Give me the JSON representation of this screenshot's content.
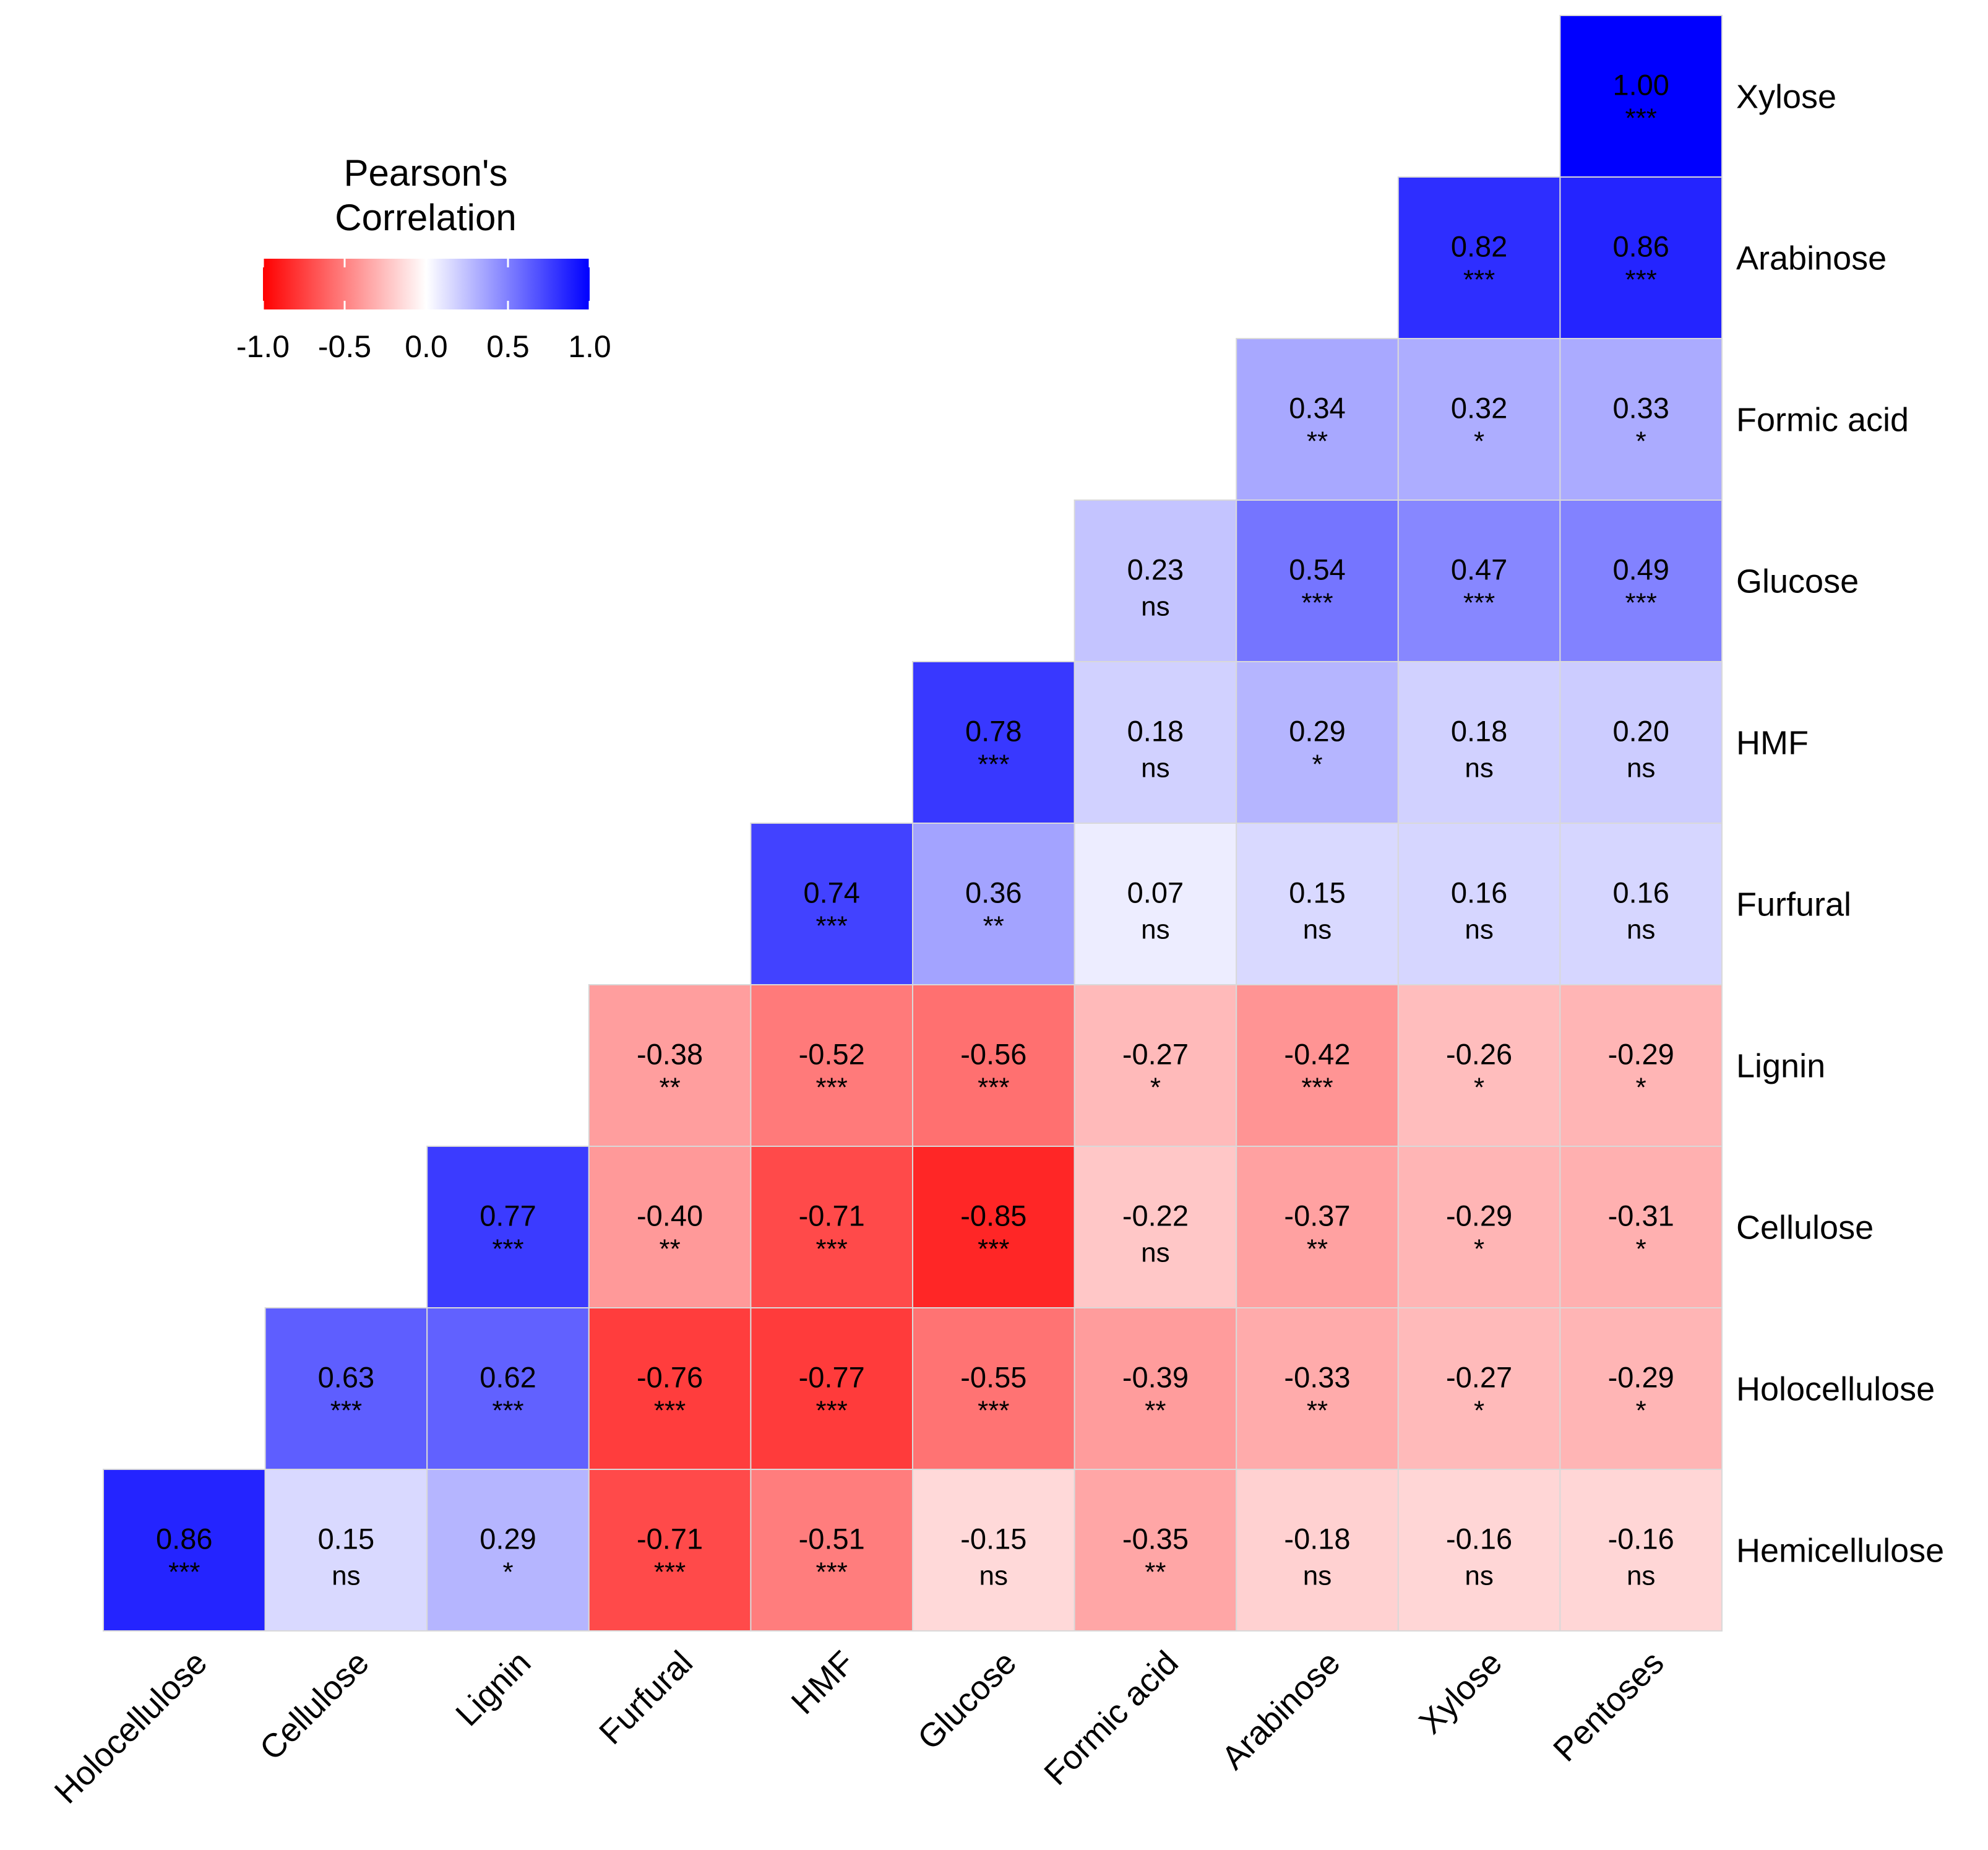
{
  "chart_data": {
    "type": "heatmap",
    "subtype": "lower-triangle correlation matrix",
    "legend": {
      "title": [
        "Pearson's",
        "Correlation"
      ],
      "ticks": [
        -1.0,
        -0.5,
        0.0,
        0.5,
        1.0
      ],
      "tick_labels": [
        "-1.0",
        "-0.5",
        "0.0",
        "0.5",
        "1.0"
      ],
      "range": [
        -1,
        1
      ],
      "low_color": "#ff0000",
      "mid_color": "#ffffff",
      "high_color": "#0000ff",
      "placement": "top-left"
    },
    "columns": [
      "Holocellulose",
      "Cellulose",
      "Lignin",
      "Furfural",
      "HMF",
      "Glucose",
      "Formic acid",
      "Arabinose",
      "Xylose",
      "Pentoses"
    ],
    "rows": [
      "Xylose",
      "Arabinose",
      "Formic acid",
      "Glucose",
      "HMF",
      "Furfural",
      "Lignin",
      "Cellulose",
      "Holocellulose",
      "Hemicellulose"
    ],
    "cells": [
      {
        "row": "Xylose",
        "col": "Pentoses",
        "value": 1.0,
        "label": "1.00",
        "sig": "***"
      },
      {
        "row": "Arabinose",
        "col": "Xylose",
        "value": 0.82,
        "label": "0.82",
        "sig": "***"
      },
      {
        "row": "Arabinose",
        "col": "Pentoses",
        "value": 0.86,
        "label": "0.86",
        "sig": "***"
      },
      {
        "row": "Formic acid",
        "col": "Arabinose",
        "value": 0.34,
        "label": "0.34",
        "sig": "**"
      },
      {
        "row": "Formic acid",
        "col": "Xylose",
        "value": 0.32,
        "label": "0.32",
        "sig": "*"
      },
      {
        "row": "Formic acid",
        "col": "Pentoses",
        "value": 0.33,
        "label": "0.33",
        "sig": "*"
      },
      {
        "row": "Glucose",
        "col": "Formic acid",
        "value": 0.23,
        "label": "0.23",
        "sig": "ns"
      },
      {
        "row": "Glucose",
        "col": "Arabinose",
        "value": 0.54,
        "label": "0.54",
        "sig": "***"
      },
      {
        "row": "Glucose",
        "col": "Xylose",
        "value": 0.47,
        "label": "0.47",
        "sig": "***"
      },
      {
        "row": "Glucose",
        "col": "Pentoses",
        "value": 0.49,
        "label": "0.49",
        "sig": "***"
      },
      {
        "row": "HMF",
        "col": "Glucose",
        "value": 0.78,
        "label": "0.78",
        "sig": "***"
      },
      {
        "row": "HMF",
        "col": "Formic acid",
        "value": 0.18,
        "label": "0.18",
        "sig": "ns"
      },
      {
        "row": "HMF",
        "col": "Arabinose",
        "value": 0.29,
        "label": "0.29",
        "sig": "*"
      },
      {
        "row": "HMF",
        "col": "Xylose",
        "value": 0.18,
        "label": "0.18",
        "sig": "ns"
      },
      {
        "row": "HMF",
        "col": "Pentoses",
        "value": 0.2,
        "label": "0.20",
        "sig": "ns"
      },
      {
        "row": "Furfural",
        "col": "HMF",
        "value": 0.74,
        "label": "0.74",
        "sig": "***"
      },
      {
        "row": "Furfural",
        "col": "Glucose",
        "value": 0.36,
        "label": "0.36",
        "sig": "**"
      },
      {
        "row": "Furfural",
        "col": "Formic acid",
        "value": 0.07,
        "label": "0.07",
        "sig": "ns"
      },
      {
        "row": "Furfural",
        "col": "Arabinose",
        "value": 0.15,
        "label": "0.15",
        "sig": "ns"
      },
      {
        "row": "Furfural",
        "col": "Xylose",
        "value": 0.16,
        "label": "0.16",
        "sig": "ns"
      },
      {
        "row": "Furfural",
        "col": "Pentoses",
        "value": 0.16,
        "label": "0.16",
        "sig": "ns"
      },
      {
        "row": "Lignin",
        "col": "Furfural",
        "value": -0.38,
        "label": "-0.38",
        "sig": "**"
      },
      {
        "row": "Lignin",
        "col": "HMF",
        "value": -0.52,
        "label": "-0.52",
        "sig": "***"
      },
      {
        "row": "Lignin",
        "col": "Glucose",
        "value": -0.56,
        "label": "-0.56",
        "sig": "***"
      },
      {
        "row": "Lignin",
        "col": "Formic acid",
        "value": -0.27,
        "label": "-0.27",
        "sig": "*"
      },
      {
        "row": "Lignin",
        "col": "Arabinose",
        "value": -0.42,
        "label": "-0.42",
        "sig": "***"
      },
      {
        "row": "Lignin",
        "col": "Xylose",
        "value": -0.26,
        "label": "-0.26",
        "sig": "*"
      },
      {
        "row": "Lignin",
        "col": "Pentoses",
        "value": -0.29,
        "label": "-0.29",
        "sig": "*"
      },
      {
        "row": "Cellulose",
        "col": "Lignin",
        "value": 0.77,
        "label": "0.77",
        "sig": "***"
      },
      {
        "row": "Cellulose",
        "col": "Furfural",
        "value": -0.4,
        "label": "-0.40",
        "sig": "**"
      },
      {
        "row": "Cellulose",
        "col": "HMF",
        "value": -0.71,
        "label": "-0.71",
        "sig": "***"
      },
      {
        "row": "Cellulose",
        "col": "Glucose",
        "value": -0.85,
        "label": "-0.85",
        "sig": "***"
      },
      {
        "row": "Cellulose",
        "col": "Formic acid",
        "value": -0.22,
        "label": "-0.22",
        "sig": "ns"
      },
      {
        "row": "Cellulose",
        "col": "Arabinose",
        "value": -0.37,
        "label": "-0.37",
        "sig": "**"
      },
      {
        "row": "Cellulose",
        "col": "Xylose",
        "value": -0.29,
        "label": "-0.29",
        "sig": "*"
      },
      {
        "row": "Cellulose",
        "col": "Pentoses",
        "value": -0.31,
        "label": "-0.31",
        "sig": "*"
      },
      {
        "row": "Holocellulose",
        "col": "Cellulose",
        "value": 0.63,
        "label": "0.63",
        "sig": "***"
      },
      {
        "row": "Holocellulose",
        "col": "Lignin",
        "value": 0.62,
        "label": "0.62",
        "sig": "***"
      },
      {
        "row": "Holocellulose",
        "col": "Furfural",
        "value": -0.76,
        "label": "-0.76",
        "sig": "***"
      },
      {
        "row": "Holocellulose",
        "col": "HMF",
        "value": -0.77,
        "label": "-0.77",
        "sig": "***"
      },
      {
        "row": "Holocellulose",
        "col": "Glucose",
        "value": -0.55,
        "label": "-0.55",
        "sig": "***"
      },
      {
        "row": "Holocellulose",
        "col": "Formic acid",
        "value": -0.39,
        "label": "-0.39",
        "sig": "**"
      },
      {
        "row": "Holocellulose",
        "col": "Arabinose",
        "value": -0.33,
        "label": "-0.33",
        "sig": "**"
      },
      {
        "row": "Holocellulose",
        "col": "Xylose",
        "value": -0.27,
        "label": "-0.27",
        "sig": "*"
      },
      {
        "row": "Holocellulose",
        "col": "Pentoses",
        "value": -0.29,
        "label": "-0.29",
        "sig": "*"
      },
      {
        "row": "Hemicellulose",
        "col": "Holocellulose",
        "value": 0.86,
        "label": "0.86",
        "sig": "***"
      },
      {
        "row": "Hemicellulose",
        "col": "Cellulose",
        "value": 0.15,
        "label": "0.15",
        "sig": "ns"
      },
      {
        "row": "Hemicellulose",
        "col": "Lignin",
        "value": 0.29,
        "label": "0.29",
        "sig": "*"
      },
      {
        "row": "Hemicellulose",
        "col": "Furfural",
        "value": -0.71,
        "label": "-0.71",
        "sig": "***"
      },
      {
        "row": "Hemicellulose",
        "col": "HMF",
        "value": -0.51,
        "label": "-0.51",
        "sig": "***"
      },
      {
        "row": "Hemicellulose",
        "col": "Glucose",
        "value": -0.15,
        "label": "-0.15",
        "sig": "ns"
      },
      {
        "row": "Hemicellulose",
        "col": "Formic acid",
        "value": -0.35,
        "label": "-0.35",
        "sig": "**"
      },
      {
        "row": "Hemicellulose",
        "col": "Arabinose",
        "value": -0.18,
        "label": "-0.18",
        "sig": "ns"
      },
      {
        "row": "Hemicellulose",
        "col": "Xylose",
        "value": -0.16,
        "label": "-0.16",
        "sig": "ns"
      },
      {
        "row": "Hemicellulose",
        "col": "Pentoses",
        "value": -0.16,
        "label": "-0.16",
        "sig": "ns"
      }
    ]
  }
}
